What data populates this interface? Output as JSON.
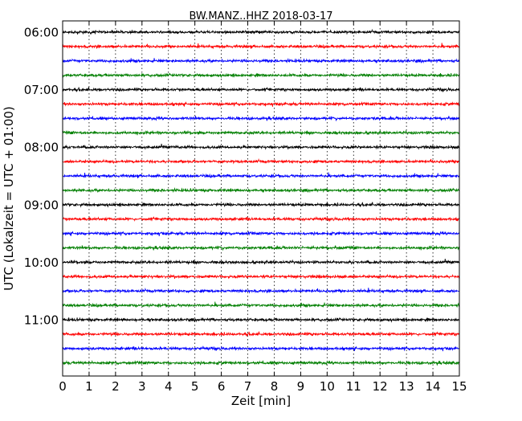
{
  "chart_data": {
    "type": "line",
    "title": "BW.MANZ..HHZ 2018-03-17",
    "xlabel": "Zeit  [min]",
    "ylabel": "UTC (Lokalzeit = UTC + 01:00)",
    "xlim": [
      0,
      15
    ],
    "x_ticks": [
      0,
      1,
      2,
      3,
      4,
      5,
      6,
      7,
      8,
      9,
      10,
      11,
      12,
      13,
      14,
      15
    ],
    "x_tick_labels": [
      "0",
      "1",
      "2",
      "3",
      "4",
      "5",
      "6",
      "7",
      "8",
      "9",
      "10",
      "11",
      "12",
      "13",
      "14",
      "15"
    ],
    "y_tick_labels": [
      "06:00",
      "07:00",
      "08:00",
      "09:00",
      "10:00",
      "11:00"
    ],
    "y_tick_rows": [
      0,
      4,
      8,
      12,
      16,
      20
    ],
    "row_count": 24,
    "row_interval_minutes": 15,
    "first_row_time": "06:00",
    "last_row_time": "11:45",
    "vertical_grid": "dotted",
    "grid_x": [
      1,
      2,
      3,
      4,
      5,
      6,
      7,
      8,
      9,
      10,
      11,
      12,
      13,
      14
    ],
    "color_cycle": [
      "#000000",
      "#ff0000",
      "#0000ff",
      "#007f00"
    ]
  }
}
